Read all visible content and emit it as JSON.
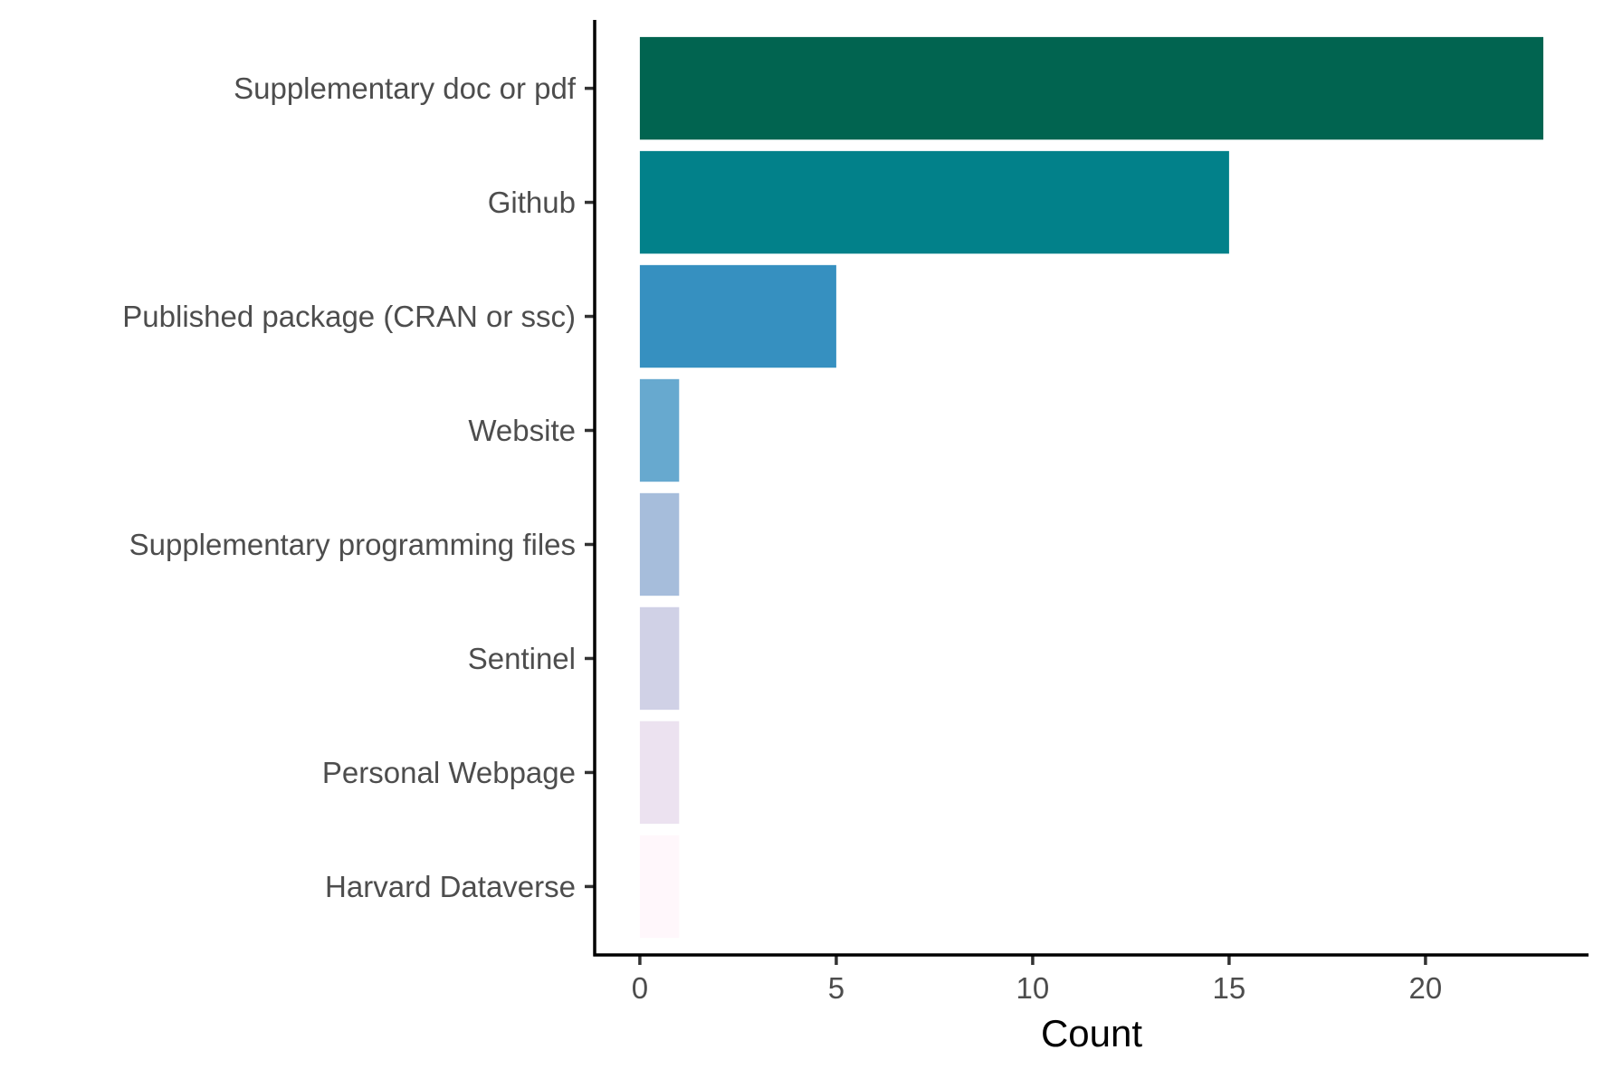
{
  "chart_data": {
    "type": "bar",
    "orientation": "horizontal",
    "categories": [
      "Supplementary doc or pdf",
      "Github",
      "Published package (CRAN or ssc)",
      "Website",
      "Supplementary programming files",
      "Sentinel",
      "Personal Webpage",
      "Harvard Dataverse"
    ],
    "values": [
      23,
      15,
      5,
      1,
      1,
      1,
      1,
      1
    ],
    "colors": [
      "#016450",
      "#02818a",
      "#3690c0",
      "#67a9cf",
      "#a6bddb",
      "#d0d1e6",
      "#ece2f0",
      "#fff7fb"
    ],
    "title": "",
    "xlabel": "Count",
    "ylabel": "",
    "xlim": [
      -1.15,
      24.15
    ],
    "xticks": [
      0,
      5,
      10,
      15,
      20
    ],
    "xtick_labels": [
      "0",
      "5",
      "10",
      "15",
      "20"
    ],
    "grid": false,
    "legend": "none"
  }
}
